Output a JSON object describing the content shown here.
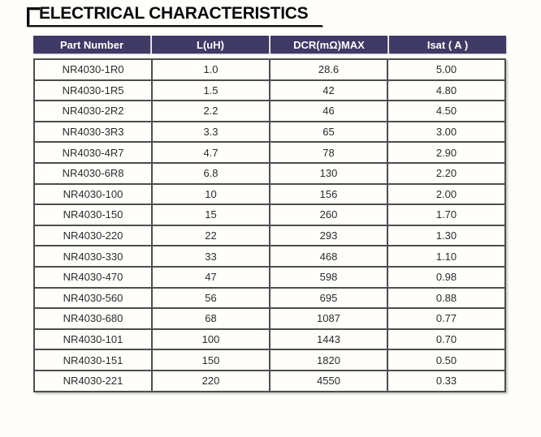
{
  "page": {
    "title": "ELECTRICAL CHARACTERISTICS"
  },
  "colors": {
    "header_bg": "#3f3a66",
    "header_text": "#ffffff",
    "grid_border": "#4d4d4d",
    "body_text": "#2b2b2b",
    "title_text": "#0a0a0a",
    "page_bg": "#fffefb"
  },
  "table": {
    "columns": [
      "Part Number",
      "L(uH)",
      "DCR(mΩ)MAX",
      "Isat ( A )"
    ],
    "rows": [
      [
        "NR4030-1R0",
        "1.0",
        "28.6",
        "5.00"
      ],
      [
        "NR4030-1R5",
        "1.5",
        "42",
        "4.80"
      ],
      [
        "NR4030-2R2",
        "2.2",
        "46",
        "4.50"
      ],
      [
        "NR4030-3R3",
        "3.3",
        "65",
        "3.00"
      ],
      [
        "NR4030-4R7",
        "4.7",
        "78",
        "2.90"
      ],
      [
        "NR4030-6R8",
        "6.8",
        "130",
        "2.20"
      ],
      [
        "NR4030-100",
        "10",
        "156",
        "2.00"
      ],
      [
        "NR4030-150",
        "15",
        "260",
        "1.70"
      ],
      [
        "NR4030-220",
        "22",
        "293",
        "1.30"
      ],
      [
        "NR4030-330",
        "33",
        "468",
        "1.10"
      ],
      [
        "NR4030-470",
        "47",
        "598",
        "0.98"
      ],
      [
        "NR4030-560",
        "56",
        "695",
        "0.88"
      ],
      [
        "NR4030-680",
        "68",
        "1087",
        "0.77"
      ],
      [
        "NR4030-101",
        "100",
        "1443",
        "0.70"
      ],
      [
        "NR4030-151",
        "150",
        "1820",
        "0.50"
      ],
      [
        "NR4030-221",
        "220",
        "4550",
        "0.33"
      ]
    ]
  }
}
